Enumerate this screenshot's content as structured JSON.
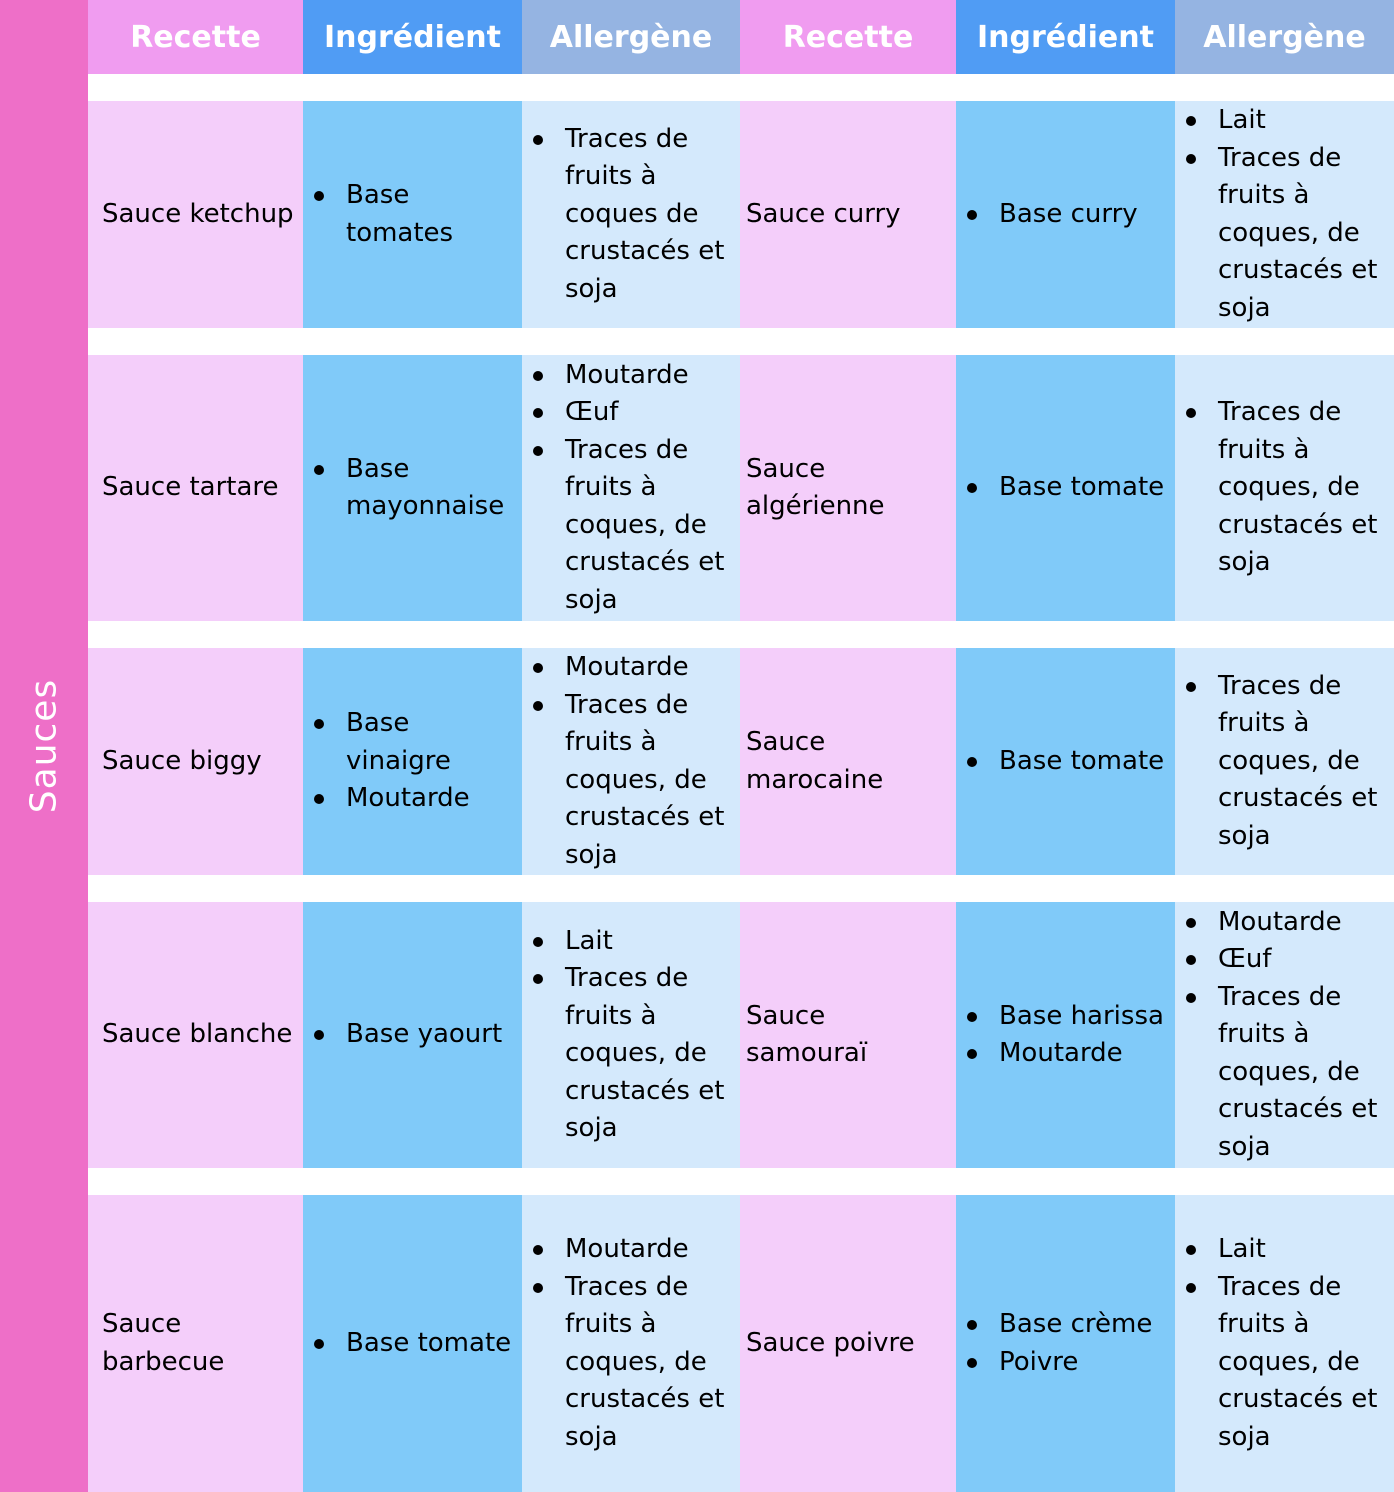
{
  "side_label": "Sauces",
  "colors": {
    "side": "#ee6fc8",
    "header_recette": "#f09cf0",
    "header_ingredient": "#509cf4",
    "header_allergene": "#95b4e2",
    "cell_recette": "#f4cefa",
    "cell_ingredient": "#80caf9",
    "cell_allergene": "#d4e9fc"
  },
  "headers": [
    "Recette",
    "Ingrédient",
    "Allergène",
    "Recette",
    "Ingrédient",
    "Allergène"
  ],
  "rows": [
    {
      "left": {
        "recette": "Sauce ketchup",
        "ingredients": [
          "Base tomates"
        ],
        "allergenes": [
          "Traces de fruits à coques de crustacés et soja"
        ]
      },
      "right": {
        "recette": "Sauce curry",
        "ingredients": [
          "Base curry"
        ],
        "allergenes": [
          "Lait",
          "Traces de fruits à coques, de crustacés et soja"
        ]
      }
    },
    {
      "left": {
        "recette": "Sauce tartare",
        "ingredients": [
          "Base mayonnaise"
        ],
        "allergenes": [
          "Moutarde",
          "Œuf",
          "Traces de fruits à coques, de crustacés et soja"
        ]
      },
      "right": {
        "recette": "Sauce algérienne",
        "ingredients": [
          "Base tomate"
        ],
        "allergenes": [
          "Traces de fruits à coques, de crustacés et soja"
        ]
      }
    },
    {
      "left": {
        "recette": "Sauce biggy",
        "ingredients": [
          "Base vinaigre",
          "Moutarde"
        ],
        "allergenes": [
          "Moutarde",
          "Traces de fruits à coques, de crustacés et soja"
        ]
      },
      "right": {
        "recette": "Sauce marocaine",
        "ingredients": [
          "Base tomate"
        ],
        "allergenes": [
          "Traces de fruits à coques, de crustacés et soja"
        ]
      }
    },
    {
      "left": {
        "recette": "Sauce blanche",
        "ingredients": [
          "Base yaourt"
        ],
        "allergenes": [
          "Lait",
          "Traces de fruits à coques, de crustacés et soja"
        ]
      },
      "right": {
        "recette": "Sauce samouraï",
        "ingredients": [
          "Base harissa",
          "Moutarde"
        ],
        "allergenes": [
          "Moutarde",
          "Œuf",
          "Traces de fruits à coques, de crustacés et soja"
        ]
      }
    },
    {
      "left": {
        "recette": "Sauce barbecue",
        "ingredients": [
          "Base tomate"
        ],
        "allergenes": [
          "Moutarde",
          "Traces de fruits à coques, de crustacés et soja"
        ]
      },
      "right": {
        "recette": "Sauce poivre",
        "ingredients": [
          "Base crème",
          "Poivre"
        ],
        "allergenes": [
          "Lait",
          "Traces de fruits à coques, de crustacés et soja"
        ]
      }
    }
  ]
}
